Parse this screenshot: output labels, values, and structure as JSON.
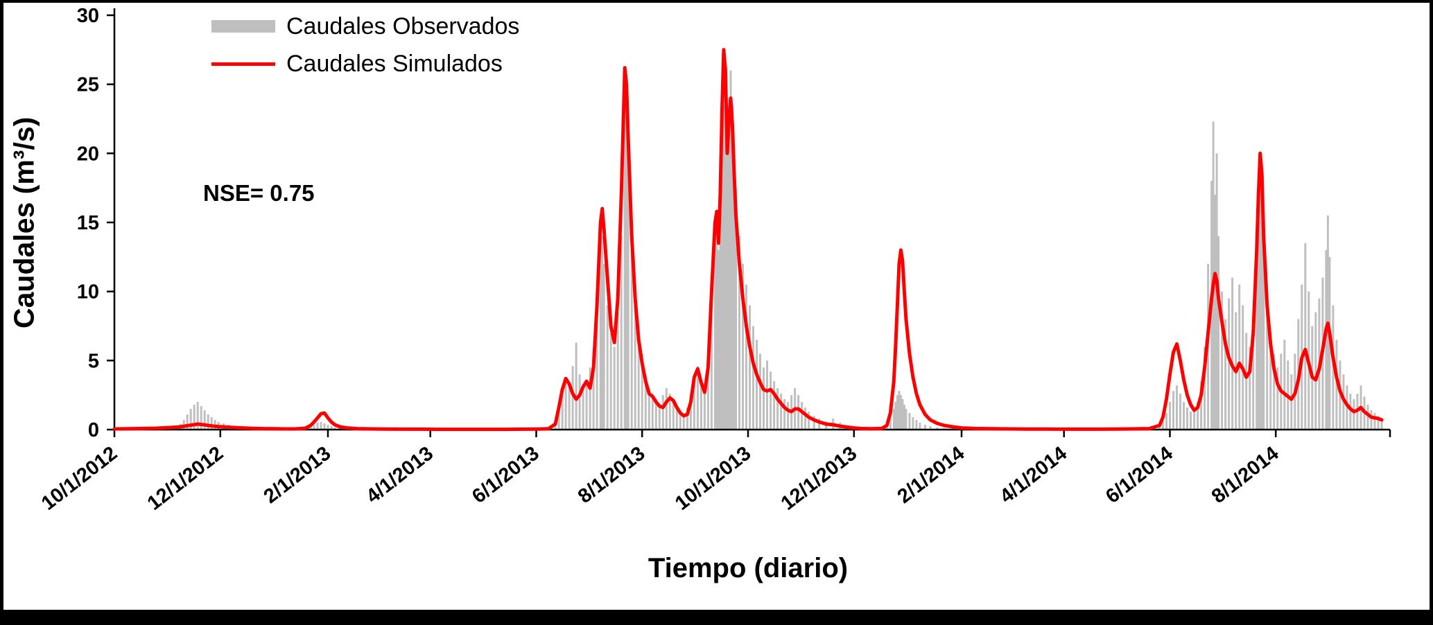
{
  "chart": {
    "y_title": "Caudales (m³/s)",
    "x_title": "Tiempo (diario)",
    "legend": {
      "observed": "Caudales Observados",
      "simulated": "Caudales Simulados"
    },
    "nse": {
      "label": "NSE= 0.75",
      "value": 0.75
    }
  },
  "chart_data": {
    "type": "bar+line",
    "title": "",
    "xlabel": "Tiempo (diario)",
    "ylabel": "Caudales (m³/s)",
    "x_unit": "days since 10/1/2012",
    "xlim": [
      0,
      730
    ],
    "ylim": [
      0,
      30
    ],
    "yticks": [
      0,
      5,
      10,
      15,
      20,
      25,
      30
    ],
    "xticks": [
      {
        "d": 0,
        "label": "10/1/2012"
      },
      {
        "d": 61,
        "label": "12/1/2012"
      },
      {
        "d": 123,
        "label": "2/1/2013"
      },
      {
        "d": 182,
        "label": "4/1/2013"
      },
      {
        "d": 243,
        "label": "6/1/2013"
      },
      {
        "d": 304,
        "label": "8/1/2013"
      },
      {
        "d": 365,
        "label": "10/1/2013"
      },
      {
        "d": 426,
        "label": "12/1/2013"
      },
      {
        "d": 488,
        "label": "2/1/2014"
      },
      {
        "d": 547,
        "label": "4/1/2014"
      },
      {
        "d": 608,
        "label": "6/1/2014"
      },
      {
        "d": 669,
        "label": "8/1/2014"
      }
    ],
    "series": [
      {
        "name": "Caudales Observados",
        "type": "bar",
        "color": "#bfbfbf"
      },
      {
        "name": "Caudales Simulados",
        "type": "line",
        "color": "#ff0000"
      }
    ],
    "legend_position": "top-left",
    "grid": false,
    "annotations": [
      {
        "text": "NSE= 0.75",
        "x_day": 55,
        "y_value": 17.5
      }
    ],
    "points_format": [
      "day",
      "observed_m3s",
      "simulated_m3s"
    ],
    "points": [
      [
        0,
        0.05,
        0.05
      ],
      [
        8,
        0.05,
        0.06
      ],
      [
        16,
        0.1,
        0.08
      ],
      [
        24,
        0.15,
        0.1
      ],
      [
        32,
        0.25,
        0.15
      ],
      [
        38,
        0.4,
        0.2
      ],
      [
        40,
        0.7,
        0.24
      ],
      [
        42,
        1.1,
        0.28
      ],
      [
        44,
        1.5,
        0.32
      ],
      [
        46,
        1.8,
        0.36
      ],
      [
        48,
        2.0,
        0.4
      ],
      [
        50,
        1.7,
        0.37
      ],
      [
        52,
        1.4,
        0.34
      ],
      [
        54,
        1.1,
        0.3
      ],
      [
        56,
        0.9,
        0.27
      ],
      [
        58,
        0.7,
        0.24
      ],
      [
        60,
        0.55,
        0.22
      ],
      [
        63,
        0.45,
        0.2
      ],
      [
        66,
        0.35,
        0.17
      ],
      [
        70,
        0.28,
        0.14
      ],
      [
        75,
        0.2,
        0.11
      ],
      [
        80,
        0.15,
        0.09
      ],
      [
        86,
        0.1,
        0.07
      ],
      [
        92,
        0.07,
        0.06
      ],
      [
        98,
        0.05,
        0.05
      ],
      [
        104,
        0.05,
        0.05
      ],
      [
        110,
        0.12,
        0.1
      ],
      [
        113,
        0.2,
        0.3
      ],
      [
        115,
        0.35,
        0.55
      ],
      [
        117,
        0.5,
        0.85
      ],
      [
        119,
        0.55,
        1.15
      ],
      [
        121,
        0.45,
        1.2
      ],
      [
        123,
        0.35,
        0.85
      ],
      [
        125,
        0.25,
        0.55
      ],
      [
        127,
        0.15,
        0.35
      ],
      [
        130,
        0.1,
        0.2
      ],
      [
        134,
        0.05,
        0.12
      ],
      [
        140,
        0.03,
        0.07
      ],
      [
        148,
        0.02,
        0.05
      ],
      [
        156,
        0.02,
        0.04
      ],
      [
        166,
        0.02,
        0.03
      ],
      [
        176,
        0.02,
        0.03
      ],
      [
        186,
        0.02,
        0.02
      ],
      [
        196,
        0.02,
        0.02
      ],
      [
        206,
        0.02,
        0.02
      ],
      [
        216,
        0.02,
        0.02
      ],
      [
        226,
        0.02,
        0.02
      ],
      [
        236,
        0.02,
        0.03
      ],
      [
        244,
        0.03,
        0.04
      ],
      [
        250,
        0.05,
        0.06
      ],
      [
        254,
        0.3,
        0.4
      ],
      [
        256,
        1.3,
        1.6
      ],
      [
        258,
        2.6,
        2.9
      ],
      [
        260,
        3.4,
        3.7
      ],
      [
        262,
        3.1,
        3.3
      ],
      [
        264,
        4.6,
        2.6
      ],
      [
        266,
        6.3,
        2.2
      ],
      [
        268,
        4.0,
        2.5
      ],
      [
        270,
        3.2,
        3.1
      ],
      [
        272,
        3.6,
        3.5
      ],
      [
        274,
        4.5,
        3.0
      ],
      [
        276,
        5.5,
        4.5
      ],
      [
        278,
        8.0,
        9.0
      ],
      [
        280,
        13.5,
        15.0
      ],
      [
        281,
        14.0,
        16.0
      ],
      [
        282,
        12.0,
        14.5
      ],
      [
        284,
        9.0,
        11.0
      ],
      [
        286,
        7.0,
        7.5
      ],
      [
        288,
        6.0,
        6.3
      ],
      [
        290,
        8.5,
        9.5
      ],
      [
        292,
        14.0,
        17.0
      ],
      [
        294,
        24.5,
        26.2
      ],
      [
        295,
        25.5,
        25.0
      ],
      [
        296,
        22.0,
        21.0
      ],
      [
        298,
        15.0,
        14.0
      ],
      [
        300,
        10.5,
        9.5
      ],
      [
        302,
        7.5,
        6.5
      ],
      [
        304,
        5.5,
        4.8
      ],
      [
        306,
        4.0,
        3.5
      ],
      [
        308,
        3.0,
        2.6
      ],
      [
        310,
        2.6,
        2.4
      ],
      [
        312,
        2.2,
        2.0
      ],
      [
        314,
        1.8,
        1.7
      ],
      [
        316,
        2.5,
        1.6
      ],
      [
        318,
        3.0,
        2.0
      ],
      [
        320,
        2.6,
        2.3
      ],
      [
        322,
        2.0,
        2.1
      ],
      [
        324,
        1.6,
        1.6
      ],
      [
        326,
        1.3,
        1.2
      ],
      [
        328,
        1.1,
        1.0
      ],
      [
        330,
        1.6,
        1.1
      ],
      [
        332,
        2.6,
        2.0
      ],
      [
        334,
        3.8,
        3.8
      ],
      [
        336,
        4.6,
        4.4
      ],
      [
        338,
        3.6,
        3.4
      ],
      [
        340,
        3.0,
        2.7
      ],
      [
        342,
        5.0,
        4.5
      ],
      [
        344,
        9.0,
        10.0
      ],
      [
        346,
        14.0,
        15.0
      ],
      [
        347,
        15.5,
        15.8
      ],
      [
        348,
        13.0,
        13.5
      ],
      [
        349,
        16.0,
        17.0
      ],
      [
        350,
        20.5,
        23.0
      ],
      [
        351,
        23.5,
        27.5
      ],
      [
        352,
        25.0,
        26.0
      ],
      [
        353,
        22.0,
        20.0
      ],
      [
        354,
        24.0,
        22.5
      ],
      [
        355,
        26.0,
        24.0
      ],
      [
        356,
        23.5,
        22.0
      ],
      [
        357,
        20.0,
        18.5
      ],
      [
        358,
        17.5,
        15.5
      ],
      [
        360,
        14.0,
        12.0
      ],
      [
        362,
        12.0,
        9.5
      ],
      [
        364,
        10.5,
        7.5
      ],
      [
        366,
        9.0,
        6.0
      ],
      [
        368,
        7.5,
        4.8
      ],
      [
        370,
        6.5,
        4.0
      ],
      [
        372,
        5.5,
        3.4
      ],
      [
        374,
        4.5,
        2.9
      ],
      [
        376,
        5.0,
        2.8
      ],
      [
        378,
        4.2,
        2.9
      ],
      [
        380,
        3.5,
        2.6
      ],
      [
        382,
        3.0,
        2.2
      ],
      [
        384,
        2.6,
        1.9
      ],
      [
        386,
        2.2,
        1.6
      ],
      [
        388,
        2.0,
        1.4
      ],
      [
        390,
        2.5,
        1.3
      ],
      [
        392,
        3.0,
        1.5
      ],
      [
        394,
        2.5,
        1.5
      ],
      [
        396,
        2.0,
        1.3
      ],
      [
        398,
        1.6,
        1.1
      ],
      [
        400,
        1.3,
        0.9
      ],
      [
        403,
        1.0,
        0.7
      ],
      [
        406,
        0.8,
        0.55
      ],
      [
        410,
        0.6,
        0.4
      ],
      [
        414,
        0.8,
        0.35
      ],
      [
        418,
        0.5,
        0.25
      ],
      [
        422,
        0.3,
        0.18
      ],
      [
        426,
        0.2,
        0.12
      ],
      [
        430,
        0.12,
        0.08
      ],
      [
        436,
        0.08,
        0.06
      ],
      [
        442,
        0.1,
        0.08
      ],
      [
        445,
        0.3,
        0.3
      ],
      [
        447,
        0.8,
        1.2
      ],
      [
        449,
        1.5,
        3.5
      ],
      [
        450,
        2.0,
        6.0
      ],
      [
        451,
        2.5,
        9.0
      ],
      [
        452,
        2.8,
        12.0
      ],
      [
        453,
        2.5,
        13.0
      ],
      [
        454,
        2.2,
        12.2
      ],
      [
        455,
        1.8,
        10.0
      ],
      [
        456,
        1.5,
        8.0
      ],
      [
        458,
        1.2,
        5.5
      ],
      [
        460,
        0.9,
        3.8
      ],
      [
        462,
        0.7,
        2.6
      ],
      [
        464,
        0.5,
        1.8
      ],
      [
        467,
        0.35,
        1.1
      ],
      [
        470,
        0.25,
        0.7
      ],
      [
        474,
        0.15,
        0.45
      ],
      [
        478,
        0.1,
        0.3
      ],
      [
        483,
        0.08,
        0.2
      ],
      [
        488,
        0.05,
        0.12
      ],
      [
        496,
        0.04,
        0.08
      ],
      [
        506,
        0.03,
        0.06
      ],
      [
        516,
        0.02,
        0.05
      ],
      [
        526,
        0.02,
        0.04
      ],
      [
        536,
        0.02,
        0.04
      ],
      [
        546,
        0.02,
        0.03
      ],
      [
        556,
        0.02,
        0.03
      ],
      [
        566,
        0.02,
        0.03
      ],
      [
        576,
        0.02,
        0.04
      ],
      [
        586,
        0.03,
        0.05
      ],
      [
        596,
        0.05,
        0.07
      ],
      [
        602,
        0.2,
        0.3
      ],
      [
        604,
        0.6,
        0.9
      ],
      [
        606,
        1.2,
        2.2
      ],
      [
        608,
        2.0,
        4.0
      ],
      [
        610,
        2.8,
        5.6
      ],
      [
        612,
        3.2,
        6.2
      ],
      [
        614,
        2.6,
        5.0
      ],
      [
        616,
        2.0,
        3.6
      ],
      [
        618,
        1.6,
        2.5
      ],
      [
        620,
        1.3,
        1.8
      ],
      [
        622,
        1.5,
        1.4
      ],
      [
        624,
        2.0,
        1.6
      ],
      [
        626,
        3.5,
        2.5
      ],
      [
        628,
        6.0,
        4.5
      ],
      [
        630,
        12.0,
        7.0
      ],
      [
        632,
        18.0,
        9.5
      ],
      [
        633,
        22.3,
        10.5
      ],
      [
        634,
        17.0,
        11.3
      ],
      [
        635,
        20.0,
        10.8
      ],
      [
        636,
        14.0,
        9.5
      ],
      [
        638,
        10.0,
        7.8
      ],
      [
        640,
        8.0,
        6.2
      ],
      [
        642,
        9.5,
        5.2
      ],
      [
        644,
        11.0,
        4.6
      ],
      [
        646,
        8.5,
        4.2
      ],
      [
        648,
        10.5,
        4.8
      ],
      [
        650,
        9.0,
        4.4
      ],
      [
        652,
        7.0,
        3.8
      ],
      [
        654,
        6.0,
        4.2
      ],
      [
        656,
        8.0,
        7.0
      ],
      [
        658,
        12.0,
        13.0
      ],
      [
        659,
        15.0,
        17.0
      ],
      [
        660,
        17.5,
        20.0
      ],
      [
        661,
        16.0,
        18.5
      ],
      [
        662,
        13.0,
        14.0
      ],
      [
        664,
        9.0,
        9.0
      ],
      [
        666,
        7.0,
        6.2
      ],
      [
        668,
        5.5,
        4.4
      ],
      [
        670,
        4.5,
        3.3
      ],
      [
        672,
        5.5,
        2.8
      ],
      [
        674,
        6.5,
        2.6
      ],
      [
        676,
        5.0,
        2.4
      ],
      [
        678,
        4.0,
        2.2
      ],
      [
        680,
        5.5,
        2.6
      ],
      [
        682,
        8.0,
        3.6
      ],
      [
        684,
        10.5,
        5.2
      ],
      [
        686,
        13.5,
        5.8
      ],
      [
        688,
        10.0,
        4.8
      ],
      [
        690,
        7.5,
        3.8
      ],
      [
        692,
        8.5,
        3.6
      ],
      [
        694,
        9.5,
        4.4
      ],
      [
        696,
        11.0,
        5.8
      ],
      [
        698,
        13.0,
        7.3
      ],
      [
        699,
        15.5,
        7.7
      ],
      [
        700,
        12.5,
        7.0
      ],
      [
        702,
        9.0,
        5.2
      ],
      [
        704,
        6.5,
        3.8
      ],
      [
        706,
        5.0,
        2.8
      ],
      [
        708,
        4.0,
        2.2
      ],
      [
        710,
        3.2,
        1.8
      ],
      [
        712,
        2.6,
        1.5
      ],
      [
        714,
        2.2,
        1.3
      ],
      [
        716,
        2.6,
        1.4
      ],
      [
        718,
        3.2,
        1.6
      ],
      [
        720,
        2.4,
        1.3
      ],
      [
        722,
        1.8,
        1.1
      ],
      [
        724,
        1.4,
        0.9
      ],
      [
        726,
        1.2,
        0.85
      ],
      [
        728,
        1.0,
        0.8
      ],
      [
        730,
        0.8,
        0.7
      ]
    ]
  }
}
